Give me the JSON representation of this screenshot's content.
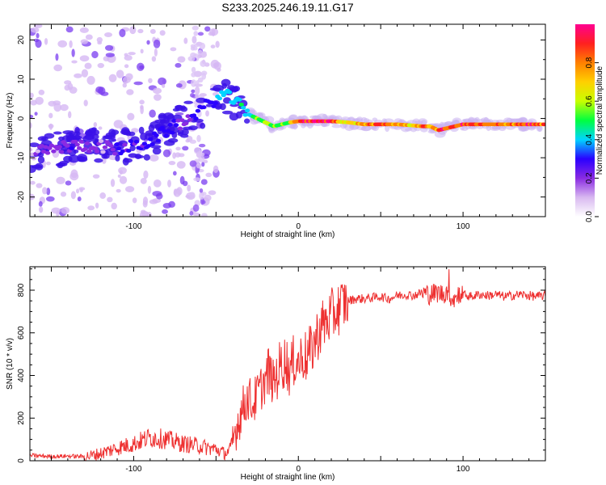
{
  "figure": {
    "title": "S233.2025.246.19.11.G17"
  },
  "chart_data": [
    {
      "type": "heatmap",
      "name": "spectrogram",
      "title": "S233.2025.246.19.11.G17",
      "xlabel": "Height of straight line (km)",
      "ylabel": "Frequency (Hz)",
      "xlim": [
        -163,
        150
      ],
      "ylim": [
        -25,
        24
      ],
      "xticks": [
        -100,
        0,
        100
      ],
      "xtick_labels": [
        "-100",
        "0",
        "100"
      ],
      "yticks": [
        -20,
        -10,
        0,
        10,
        20
      ],
      "ytick_labels": [
        "-20",
        "-10",
        "0",
        "10",
        "20"
      ],
      "colorbar": {
        "label": "Normalized spectral amplitude",
        "range": [
          0.0,
          1.0
        ],
        "ticks": [
          0.0,
          0.2,
          0.4,
          0.6,
          0.8
        ],
        "tick_labels": [
          "0.0",
          "0.2",
          "0.4",
          "0.6",
          "0.8"
        ],
        "colors": [
          "#ffffff",
          "#d8b8f0",
          "#8a2be2",
          "#2a00ff",
          "#00d4ff",
          "#00ff40",
          "#c8ff00",
          "#ffd000",
          "#ff8000",
          "#ff2020",
          "#ff0090"
        ]
      },
      "ridge": {
        "x": [
          -163,
          -150,
          -140,
          -130,
          -120,
          -110,
          -100,
          -90,
          -80,
          -70,
          -60,
          -50,
          -45,
          -40,
          -35,
          -30,
          -25,
          -20,
          -15,
          -10,
          -5,
          0,
          10,
          20,
          30,
          40,
          50,
          60,
          70,
          75,
          80,
          85,
          90,
          100,
          110,
          120,
          130,
          140,
          150
        ],
        "y": [
          -9,
          -8,
          -7,
          -7,
          -7,
          -8,
          -7,
          -6,
          -3,
          -1,
          2,
          5,
          6,
          5,
          3,
          1,
          0,
          -1,
          -2,
          -1.5,
          -1,
          -0.7,
          -0.7,
          -0.7,
          -1,
          -1.5,
          -1.5,
          -1.5,
          -1.8,
          -2,
          -2,
          -3,
          -2.5,
          -1.5,
          -1.5,
          -1.5,
          -1.5,
          -1.5,
          -1.5
        ],
        "amplitude": [
          0.15,
          0.2,
          0.25,
          0.2,
          0.15,
          0.3,
          0.25,
          0.3,
          0.3,
          0.25,
          0.3,
          0.35,
          0.45,
          0.4,
          0.45,
          0.4,
          0.55,
          0.6,
          0.5,
          0.55,
          0.6,
          0.9,
          0.95,
          0.95,
          0.65,
          0.8,
          0.85,
          0.8,
          0.7,
          0.9,
          0.7,
          0.9,
          0.85,
          0.9,
          0.85,
          0.8,
          0.85,
          0.9,
          0.85
        ]
      }
    },
    {
      "type": "line",
      "name": "snr",
      "xlabel": "Height of straight line (km)",
      "ylabel": "SNR (10 * v/v)",
      "xlim": [
        -163,
        150
      ],
      "ylim": [
        0,
        910
      ],
      "xticks": [
        -100,
        0,
        100
      ],
      "xtick_labels": [
        "-100",
        "0",
        "100"
      ],
      "yticks": [
        0,
        200,
        400,
        600,
        800
      ],
      "ytick_labels": [
        "0",
        "200",
        "400",
        "600",
        "800"
      ],
      "color": "#ee3030",
      "series": [
        {
          "name": "SNR",
          "x": [
            -163,
            -150,
            -140,
            -130,
            -125,
            -120,
            -110,
            -100,
            -95,
            -90,
            -85,
            -80,
            -75,
            -70,
            -65,
            -60,
            -55,
            -50,
            -45,
            -42,
            -40,
            -38,
            -35,
            -32,
            -30,
            -28,
            -25,
            -22,
            -20,
            -18,
            -15,
            -12,
            -10,
            -8,
            -5,
            -2,
            0,
            3,
            5,
            8,
            10,
            12,
            15,
            18,
            20,
            23,
            25,
            28,
            30,
            35,
            40,
            45,
            50,
            55,
            60,
            65,
            70,
            75,
            80,
            85,
            88,
            90,
            92,
            95,
            98,
            100,
            105,
            110,
            115,
            120,
            125,
            130,
            135,
            140,
            145,
            150
          ],
          "y": [
            25,
            20,
            22,
            20,
            25,
            35,
            60,
            80,
            95,
            110,
            105,
            100,
            90,
            80,
            75,
            70,
            60,
            55,
            35,
            45,
            80,
            150,
            220,
            280,
            300,
            260,
            310,
            350,
            380,
            420,
            360,
            430,
            450,
            470,
            420,
            480,
            460,
            500,
            480,
            520,
            560,
            600,
            640,
            660,
            680,
            700,
            720,
            740,
            750,
            760,
            760,
            765,
            770,
            760,
            775,
            780,
            775,
            790,
            780,
            790,
            780,
            800,
            770,
            760,
            790,
            780,
            770,
            780,
            775,
            780,
            770,
            775,
            780,
            775,
            770,
            775
          ]
        }
      ]
    }
  ]
}
